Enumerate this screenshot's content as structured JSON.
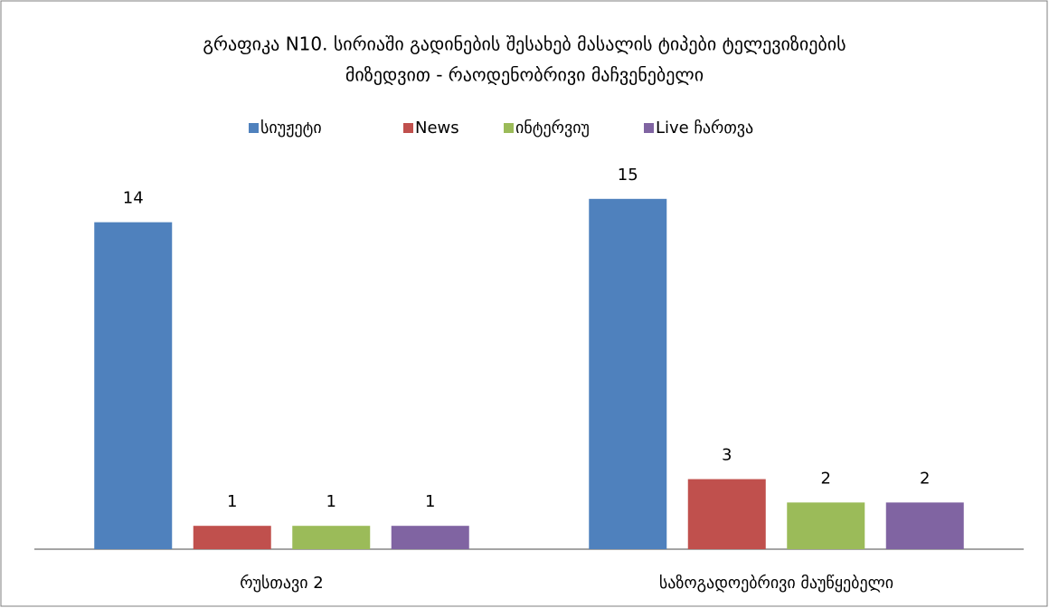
{
  "chart_data": {
    "type": "bar",
    "title": [
      "გრაფიკა N10. სირიაში გადინების შესახებ მასალის ტიპები  ტელევიზიების",
      "მიზედვით - რაოდენობრივი მაჩვენებელი"
    ],
    "categories": [
      "რუსთავი 2",
      "საზოგადოებრივი მაუწყებელი"
    ],
    "series": [
      {
        "name": "სიუჟეტი",
        "color": "#4f81bd",
        "values": [
          14,
          15
        ]
      },
      {
        "name": "News",
        "color": "#c0504d",
        "values": [
          1,
          3
        ]
      },
      {
        "name": "ინტერვიუ",
        "color": "#9bbb59",
        "values": [
          1,
          2
        ]
      },
      {
        "name": "Live ჩართვა",
        "color": "#8064a2",
        "values": [
          1,
          2
        ]
      }
    ],
    "ylim": [
      0,
      16
    ],
    "legend": "top"
  }
}
